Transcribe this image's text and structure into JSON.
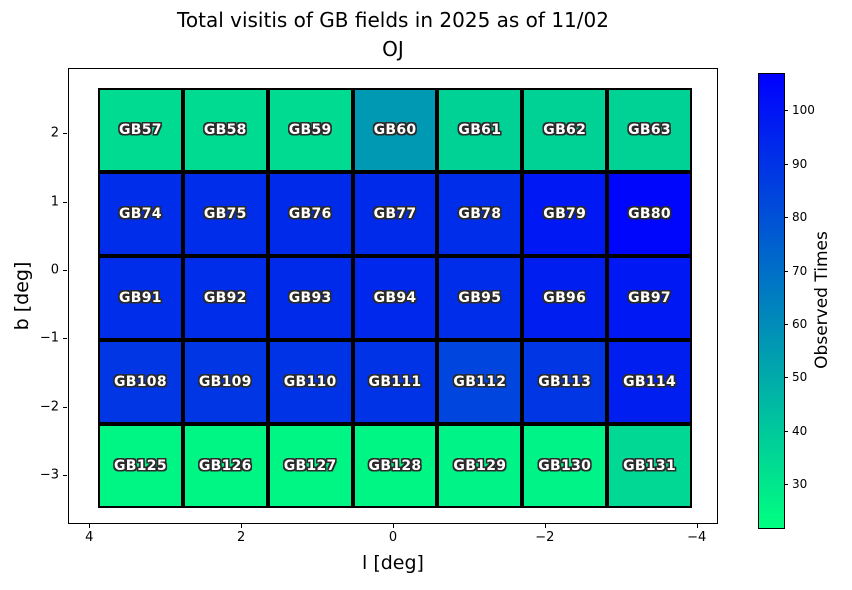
{
  "chart_data": {
    "type": "heatmap",
    "title": "Total visitis of GB fields in 2025 as of 11/02",
    "subtitle": "OJ",
    "xlabel": "l [deg]",
    "ylabel": "b [deg]",
    "colorbar_label": "Observed Times",
    "colormap": "winter_r",
    "colormap_colors": {
      "low": "#00ff80",
      "high": "#0000ff"
    },
    "value_range": [
      22,
      107
    ],
    "xlim": [
      4.28,
      -4.28
    ],
    "ylim": [
      2.95,
      -3.71
    ],
    "x_ticks": [
      {
        "v": 4,
        "label": "4"
      },
      {
        "v": 2,
        "label": "2"
      },
      {
        "v": 0,
        "label": "0"
      },
      {
        "v": -2,
        "label": "−2"
      },
      {
        "v": -4,
        "label": "−4"
      }
    ],
    "y_ticks": [
      {
        "v": 2,
        "label": "2"
      },
      {
        "v": 1,
        "label": "1"
      },
      {
        "v": 0,
        "label": "0"
      },
      {
        "v": -1,
        "label": "−1"
      },
      {
        "v": -2,
        "label": "−2"
      },
      {
        "v": -3,
        "label": "−3"
      }
    ],
    "colorbar_ticks": [
      {
        "v": 30,
        "label": "30"
      },
      {
        "v": 40,
        "label": "40"
      },
      {
        "v": 50,
        "label": "50"
      },
      {
        "v": 60,
        "label": "60"
      },
      {
        "v": 70,
        "label": "70"
      },
      {
        "v": 80,
        "label": "80"
      },
      {
        "v": 90,
        "label": "90"
      },
      {
        "v": 100,
        "label": "100"
      }
    ],
    "rows": [
      {
        "cells": [
          {
            "label": "GB57",
            "value": 34
          },
          {
            "label": "GB58",
            "value": 34
          },
          {
            "label": "GB59",
            "value": 34
          },
          {
            "label": "GB60",
            "value": 56
          },
          {
            "label": "GB61",
            "value": 37
          },
          {
            "label": "GB62",
            "value": 37
          },
          {
            "label": "GB63",
            "value": 37
          }
        ]
      },
      {
        "cells": [
          {
            "label": "GB74",
            "value": 92
          },
          {
            "label": "GB75",
            "value": 92
          },
          {
            "label": "GB76",
            "value": 93
          },
          {
            "label": "GB77",
            "value": 93
          },
          {
            "label": "GB78",
            "value": 92
          },
          {
            "label": "GB79",
            "value": 99
          },
          {
            "label": "GB80",
            "value": 105
          }
        ]
      },
      {
        "cells": [
          {
            "label": "GB91",
            "value": 92
          },
          {
            "label": "GB92",
            "value": 92
          },
          {
            "label": "GB93",
            "value": 93
          },
          {
            "label": "GB94",
            "value": 94
          },
          {
            "label": "GB95",
            "value": 92
          },
          {
            "label": "GB96",
            "value": 97
          },
          {
            "label": "GB97",
            "value": 99
          }
        ]
      },
      {
        "cells": [
          {
            "label": "GB108",
            "value": 89
          },
          {
            "label": "GB109",
            "value": 89
          },
          {
            "label": "GB110",
            "value": 90
          },
          {
            "label": "GB111",
            "value": 90
          },
          {
            "label": "GB112",
            "value": 84
          },
          {
            "label": "GB113",
            "value": 89
          },
          {
            "label": "GB114",
            "value": 97
          }
        ]
      },
      {
        "cells": [
          {
            "label": "GB125",
            "value": 25
          },
          {
            "label": "GB126",
            "value": 25
          },
          {
            "label": "GB127",
            "value": 25
          },
          {
            "label": "GB128",
            "value": 25
          },
          {
            "label": "GB129",
            "value": 26
          },
          {
            "label": "GB130",
            "value": 26
          },
          {
            "label": "GB131",
            "value": 35
          }
        ]
      }
    ]
  }
}
